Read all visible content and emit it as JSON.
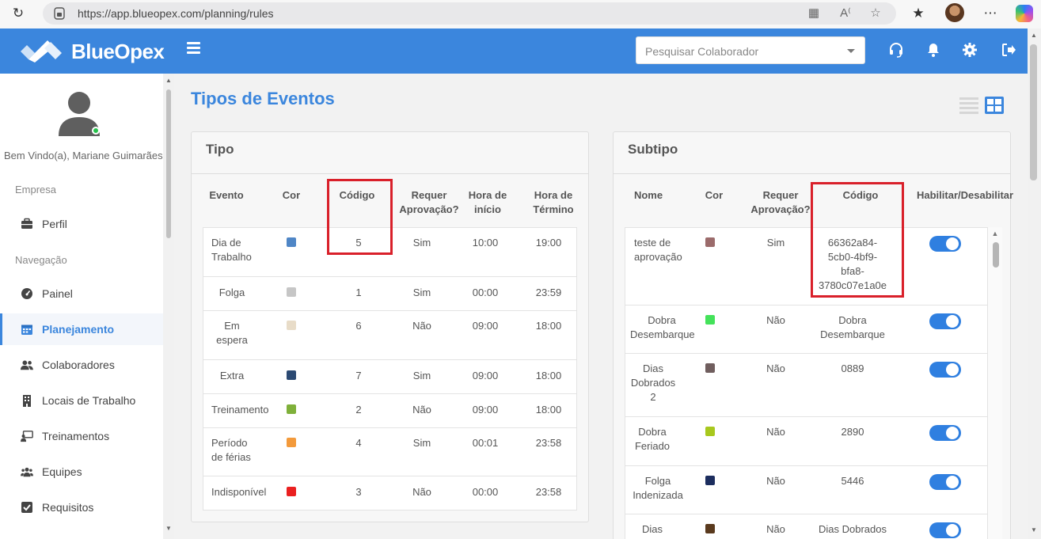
{
  "browser": {
    "url": "https://app.blueopex.com/planning/rules"
  },
  "header": {
    "brand": "BlueOpex",
    "employee_search_placeholder": "Pesquisar Colaborador"
  },
  "sidebar": {
    "welcome": "Bem Vindo(a), Mariane Guimarães",
    "section_company": "Empresa",
    "section_nav": "Navegação",
    "items": [
      {
        "label": "Perfil",
        "icon": "briefcase-icon"
      },
      {
        "label": "Painel",
        "icon": "dashboard-icon"
      },
      {
        "label": "Planejamento",
        "icon": "calendar-icon",
        "active": true
      },
      {
        "label": "Colaboradores",
        "icon": "users-icon"
      },
      {
        "label": "Locais de Trabalho",
        "icon": "building-icon"
      },
      {
        "label": "Treinamentos",
        "icon": "training-icon"
      },
      {
        "label": "Equipes",
        "icon": "team-icon"
      },
      {
        "label": "Requisitos",
        "icon": "checkbox-icon"
      }
    ]
  },
  "main": {
    "title": "Tipos de Eventos",
    "tipo": {
      "title": "Tipo",
      "headers": {
        "evento": "Evento",
        "cor": "Cor",
        "codigo": "Código",
        "requer_1": "Requer",
        "requer_2": "Aprovação?",
        "inicio_1": "Hora de",
        "inicio_2": "início",
        "termino_1": "Hora de",
        "termino_2": "Término"
      },
      "rows": [
        {
          "evento": [
            "Dia de",
            "Trabalho"
          ],
          "color": "#4f86c6",
          "codigo": "5",
          "aprov": "Sim",
          "inicio": "10:00",
          "termino": "19:00"
        },
        {
          "evento": [
            "Folga"
          ],
          "color": "#c6c6c6",
          "codigo": "1",
          "aprov": "Sim",
          "inicio": "00:00",
          "termino": "23:59"
        },
        {
          "evento": [
            "Em",
            "espera"
          ],
          "color": "#e8dcc8",
          "codigo": "6",
          "aprov": "Não",
          "inicio": "09:00",
          "termino": "18:00"
        },
        {
          "evento": [
            "Extra"
          ],
          "color": "#2c4a73",
          "codigo": "7",
          "aprov": "Sim",
          "inicio": "09:00",
          "termino": "18:00"
        },
        {
          "evento": [
            "Treinamento"
          ],
          "color": "#7fb03a",
          "codigo": "2",
          "aprov": "Não",
          "inicio": "09:00",
          "termino": "18:00"
        },
        {
          "evento": [
            "Período",
            "de férias"
          ],
          "color": "#f39a3b",
          "codigo": "4",
          "aprov": "Sim",
          "inicio": "00:01",
          "termino": "23:58"
        },
        {
          "evento": [
            "Indisponível"
          ],
          "color": "#ea2020",
          "codigo": "3",
          "aprov": "Não",
          "inicio": "00:00",
          "termino": "23:58"
        }
      ]
    },
    "subtipo": {
      "title": "Subtipo",
      "headers": {
        "nome": "Nome",
        "cor": "Cor",
        "requer_1": "Requer",
        "requer_2": "Aprovação?",
        "codigo": "Código",
        "habilitar": "Habilitar/Desabilitar"
      },
      "rows": [
        {
          "nome": [
            "teste de",
            "aprovação"
          ],
          "color": "#9b6b6b",
          "aprov": "Sim",
          "codigo": [
            "66362a84-",
            "5cb0-4bf9-",
            "bfa8-",
            "3780c07e1a0e"
          ],
          "enabled": true
        },
        {
          "nome": [
            "Dobra",
            "Desembarque"
          ],
          "color": "#44e25a",
          "aprov": "Não",
          "codigo": [
            "Dobra",
            "Desembarque"
          ],
          "enabled": true
        },
        {
          "nome": [
            "Dias",
            "Dobrados",
            "2"
          ],
          "color": "#705e5e",
          "aprov": "Não",
          "codigo": [
            "0889"
          ],
          "enabled": true
        },
        {
          "nome": [
            "Dobra",
            "Feriado"
          ],
          "color": "#a8c81e",
          "aprov": "Não",
          "codigo": [
            "2890"
          ],
          "enabled": true
        },
        {
          "nome": [
            "Folga",
            "Indenizada"
          ],
          "color": "#1c2d5e",
          "aprov": "Não",
          "codigo": [
            "5446"
          ],
          "enabled": true
        },
        {
          "nome": [
            "Dias"
          ],
          "color": "#5a3a1e",
          "aprov": "Não",
          "codigo": [
            "Dias Dobrados"
          ],
          "enabled": true
        }
      ]
    }
  }
}
